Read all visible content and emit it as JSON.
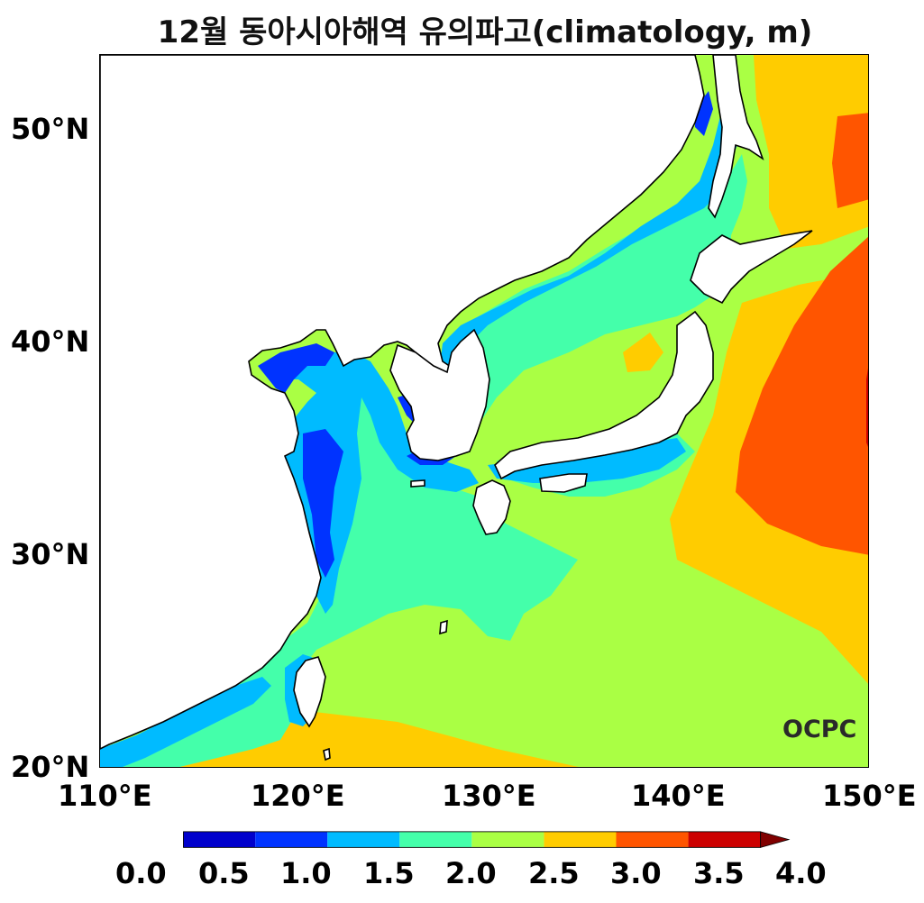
{
  "title": "12월 동아시아해역 유의파고(climatology, m)",
  "logo": "OCPC",
  "lat_labels": [
    "50°N",
    "40°N",
    "30°N",
    "20°N"
  ],
  "lon_labels": [
    "110°E",
    "120°E",
    "130°E",
    "140°E",
    "150°E"
  ],
  "colorbar": {
    "ticks": [
      "0.0",
      "0.5",
      "1.0",
      "1.5",
      "2.0",
      "2.5",
      "3.0",
      "3.5",
      "4.0"
    ],
    "colors": [
      "#0000cc",
      "#0033ff",
      "#00bbff",
      "#44ffaa",
      "#aaff44",
      "#ffcc00",
      "#ff5500",
      "#cc0000"
    ],
    "extend_color": "#800000"
  },
  "map": {
    "lat_range": [
      20,
      53.5
    ],
    "lon_range": [
      110,
      150
    ],
    "colors": {
      "land": "#ffffff",
      "coast": "#000000",
      "level_0_5_1_0": "#0033ff",
      "level_1_0_1_5": "#00bbff",
      "level_1_5_2_0": "#44ffaa",
      "level_2_0_2_5": "#aaff44",
      "level_2_5_3_0": "#ffcc00",
      "level_3_0_3_5": "#ff5500",
      "level_3_5_4_0": "#cc0000"
    }
  }
}
